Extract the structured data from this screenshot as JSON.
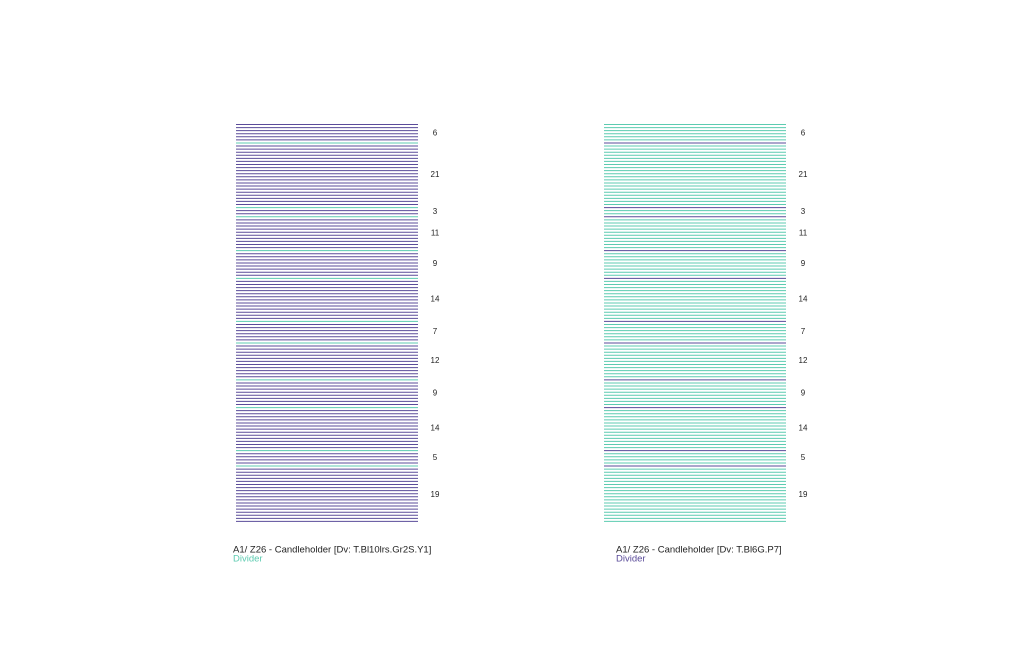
{
  "panels": [
    {
      "caption": "A1/ Z26 - Candleholder [Dv: T.Bl10lrs.Gr2S.Y1]",
      "legend": "Divider",
      "line_color": "#5a4b99",
      "divider_color": "#5ccbb0",
      "groups": [
        6,
        21,
        3,
        11,
        9,
        14,
        7,
        12,
        9,
        14,
        5,
        19
      ]
    },
    {
      "caption": "A1/ Z26 - Candleholder [Dv: T.Bl6G.P7]",
      "legend": "Divider",
      "line_color": "#5ccbb0",
      "divider_color": "#5a4b99",
      "groups": [
        6,
        21,
        3,
        11,
        9,
        14,
        7,
        12,
        9,
        14,
        5,
        19
      ]
    }
  ]
}
